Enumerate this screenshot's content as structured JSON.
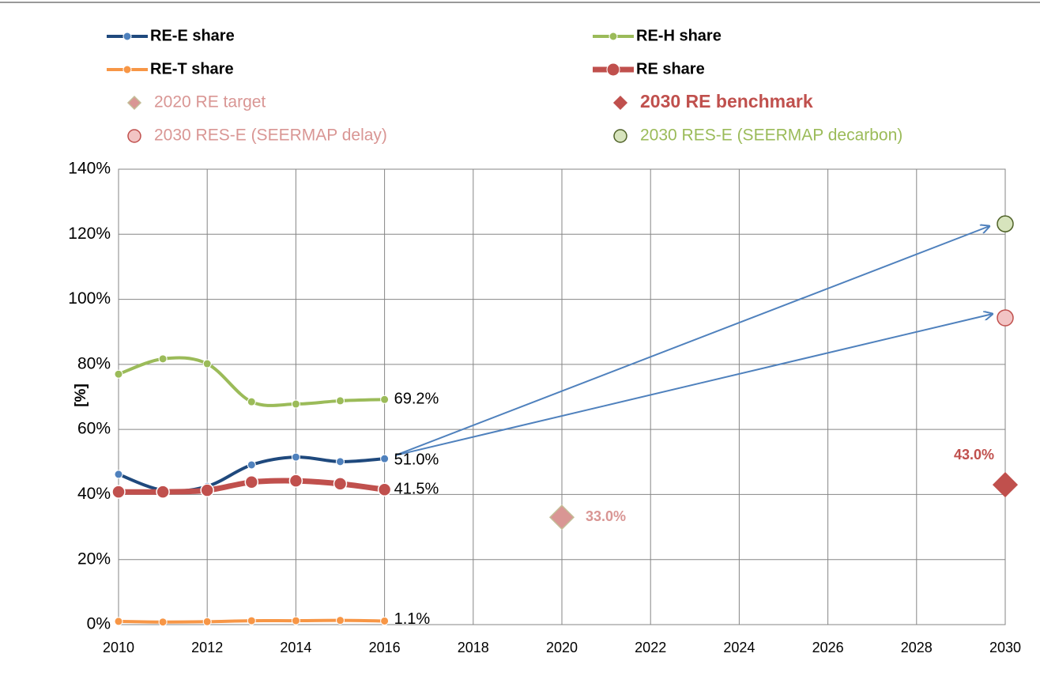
{
  "chart_data": {
    "type": "line",
    "y_axis_label": "[%]",
    "xlim": [
      2010,
      2030
    ],
    "xticks": [
      2010,
      2012,
      2014,
      2016,
      2018,
      2020,
      2022,
      2024,
      2026,
      2028,
      2030
    ],
    "ylim": [
      0,
      140
    ],
    "yticks": [
      {
        "value": 0,
        "label": "0%"
      },
      {
        "value": 20,
        "label": "20%"
      },
      {
        "value": 40,
        "label": "40%"
      },
      {
        "value": 60,
        "label": "60%"
      },
      {
        "value": 80,
        "label": "80%"
      },
      {
        "value": 100,
        "label": "100%"
      },
      {
        "value": 120,
        "label": "120%"
      },
      {
        "value": 140,
        "label": "140%"
      }
    ],
    "grid": true,
    "series": [
      {
        "name": "RE-E share",
        "color": "#1f497d",
        "marker_color": "#4f81bd",
        "line": true,
        "marker": "circle",
        "x": [
          2010,
          2011,
          2012,
          2013,
          2014,
          2015,
          2016
        ],
        "values": [
          46.2,
          41.3,
          42.5,
          49.1,
          51.5,
          50.1,
          51.0
        ],
        "value_labels": [
          null,
          null,
          null,
          null,
          null,
          null,
          "51.0%"
        ]
      },
      {
        "name": "RE-H share",
        "color": "#9bbb59",
        "marker_color": "#9bbb59",
        "line": true,
        "marker": "circle",
        "x": [
          2010,
          2011,
          2012,
          2013,
          2014,
          2015,
          2016
        ],
        "values": [
          77.0,
          81.7,
          80.2,
          68.5,
          67.8,
          68.8,
          69.2
        ],
        "value_labels": [
          null,
          null,
          null,
          null,
          null,
          null,
          "69.2%"
        ]
      },
      {
        "name": "RE-T share",
        "color": "#f79646",
        "marker_color": "#f79646",
        "line": true,
        "marker": "circle",
        "x": [
          2010,
          2011,
          2012,
          2013,
          2014,
          2015,
          2016
        ],
        "values": [
          1.0,
          0.8,
          0.9,
          1.2,
          1.2,
          1.3,
          1.1
        ],
        "value_labels": [
          null,
          null,
          null,
          null,
          null,
          null,
          "1.1%"
        ]
      },
      {
        "name": "RE share",
        "color": "#c0504d",
        "marker_color": "#c0504d",
        "line": true,
        "marker": "circle",
        "bold": true,
        "x": [
          2010,
          2011,
          2012,
          2013,
          2014,
          2015,
          2016
        ],
        "values": [
          40.8,
          40.8,
          41.3,
          43.8,
          44.2,
          43.3,
          41.5
        ],
        "value_labels": [
          null,
          null,
          null,
          null,
          null,
          null,
          "41.5%"
        ]
      },
      {
        "name": "2020 RE target",
        "color": "#d99694",
        "marker_color": "#d99694",
        "line": false,
        "marker": "diamond",
        "x": [
          2020
        ],
        "values": [
          33.0
        ],
        "value_labels": [
          "33.0%"
        ]
      },
      {
        "name": "2030 RE benchmark",
        "color": "#c0504d",
        "marker_color": "#c0504d",
        "line": false,
        "marker": "diamond",
        "x": [
          2030
        ],
        "values": [
          43.0
        ],
        "value_labels": [
          "43.0%"
        ]
      },
      {
        "name": "2030 RES-E (SEERMAP delay)",
        "color": "#d99694",
        "marker_color": "#f2c4c4",
        "line": false,
        "marker": "circle",
        "x": [
          2030
        ],
        "values": [
          94.3
        ]
      },
      {
        "name": "2030 RES-E (SEERMAP decarbon)",
        "color": "#9bbb59",
        "marker_color": "#d7e4bd",
        "line": false,
        "marker": "circle",
        "x": [
          2030
        ],
        "values": [
          123.2
        ]
      }
    ]
  }
}
